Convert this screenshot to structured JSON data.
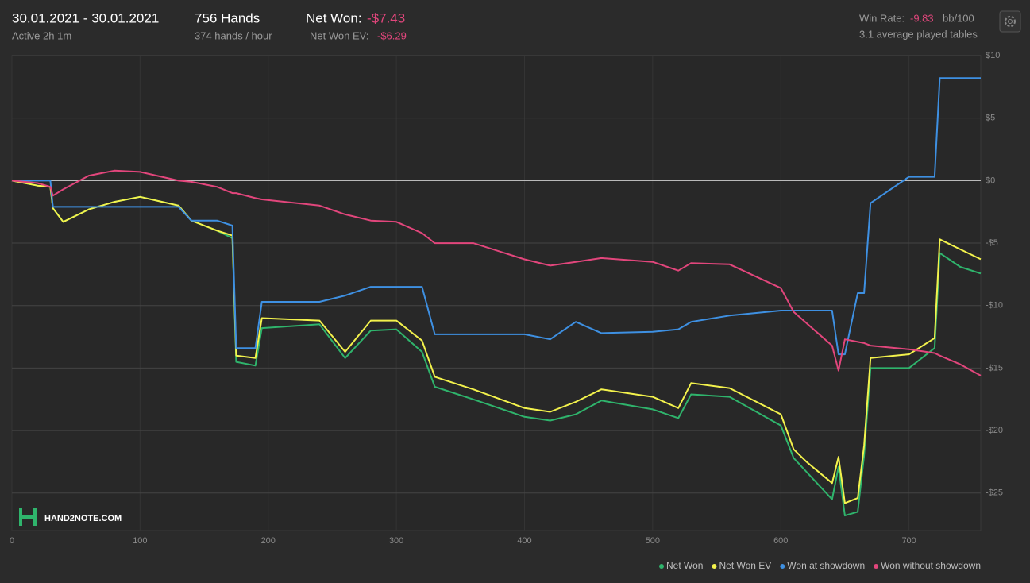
{
  "header": {
    "date_range": "30.01.2021 - 30.01.2021",
    "active": "Active 2h 1m",
    "hands": "756 Hands",
    "hands_per_hour": "374 hands / hour",
    "net_won_label": "Net Won:",
    "net_won_value": "-$7.43",
    "net_won_ev_label": "Net Won  EV:",
    "net_won_ev_value": "-$6.29",
    "win_rate_label": "Win Rate:",
    "win_rate_value": "-9.83",
    "win_rate_unit": "bb/100",
    "tables": "3.1 average played tables"
  },
  "logo": "HAND2NOTE.COM",
  "chart_data": {
    "type": "line",
    "grid": true,
    "legend": "bottom-right",
    "x": [
      0,
      20,
      30,
      32,
      40,
      60,
      80,
      100,
      130,
      140,
      160,
      172,
      175,
      190,
      195,
      240,
      260,
      280,
      300,
      320,
      330,
      360,
      400,
      420,
      440,
      460,
      500,
      520,
      530,
      560,
      600,
      610,
      620,
      640,
      645,
      650,
      660,
      665,
      670,
      700,
      720,
      724,
      740,
      756
    ],
    "series": [
      {
        "name": "Net Won",
        "color": "#2fb46c",
        "values": [
          0,
          -0.4,
          -0.5,
          -2.2,
          -3.3,
          -2.3,
          -1.7,
          -1.3,
          -2.0,
          -3.2,
          -4.0,
          -4.6,
          -14.5,
          -14.8,
          -11.8,
          -11.5,
          -14.2,
          -12.0,
          -11.9,
          -13.7,
          -16.5,
          -17.5,
          -18.9,
          -19.2,
          -18.7,
          -17.6,
          -18.3,
          -19.0,
          -17.1,
          -17.3,
          -19.6,
          -22.2,
          -23.3,
          -25.5,
          -22.9,
          -26.8,
          -26.5,
          -22.0,
          -15.0,
          -15.0,
          -13.4,
          -5.8,
          -6.9,
          -7.43
        ]
      },
      {
        "name": "Net Won  EV",
        "color": "#f3f24c",
        "values": [
          0,
          -0.4,
          -0.5,
          -2.2,
          -3.3,
          -2.3,
          -1.7,
          -1.3,
          -2.0,
          -3.2,
          -4.0,
          -4.4,
          -14.0,
          -14.2,
          -11.0,
          -11.2,
          -13.7,
          -11.2,
          -11.2,
          -12.8,
          -15.7,
          -16.7,
          -18.2,
          -18.5,
          -17.7,
          -16.7,
          -17.3,
          -18.2,
          -16.2,
          -16.6,
          -18.7,
          -21.5,
          -22.5,
          -24.2,
          -22.1,
          -25.8,
          -25.4,
          -21.2,
          -14.2,
          -13.9,
          -12.6,
          -4.7,
          -5.5,
          -6.29
        ]
      },
      {
        "name": "Won at showdown",
        "color": "#3e90e2",
        "values": [
          0,
          0,
          0,
          -2.1,
          -2.1,
          -2.1,
          -2.1,
          -2.1,
          -2.1,
          -3.2,
          -3.2,
          -3.6,
          -13.4,
          -13.4,
          -9.7,
          -9.7,
          -9.2,
          -8.5,
          -8.5,
          -8.5,
          -12.3,
          -12.3,
          -12.3,
          -12.7,
          -11.3,
          -12.2,
          -12.1,
          -11.9,
          -11.3,
          -10.8,
          -10.4,
          -10.4,
          -10.4,
          -10.4,
          -13.9,
          -13.9,
          -9.0,
          -9.0,
          -1.8,
          0.3,
          0.3,
          8.2,
          8.2,
          8.2
        ]
      },
      {
        "name": "Won without showdown",
        "color": "#e2467c",
        "values": [
          0,
          -0.2,
          -0.5,
          -1.2,
          -0.7,
          0.4,
          0.8,
          0.7,
          0.0,
          -0.1,
          -0.5,
          -1.0,
          -1.0,
          -1.4,
          -1.5,
          -2.0,
          -2.7,
          -3.2,
          -3.3,
          -4.2,
          -5.0,
          -5.0,
          -6.3,
          -6.8,
          -6.5,
          -6.2,
          -6.5,
          -7.2,
          -6.6,
          -6.7,
          -8.6,
          -10.5,
          -11.4,
          -13.2,
          -15.2,
          -12.7,
          -12.9,
          -13.0,
          -13.2,
          -13.5,
          -13.8,
          -14.0,
          -14.7,
          -15.6
        ]
      }
    ],
    "xlim": [
      0,
      756
    ],
    "xticks": [
      0,
      100,
      200,
      300,
      400,
      500,
      600,
      700
    ],
    "ylim": [
      -28,
      10
    ],
    "yticks": [
      {
        "value": 10,
        "label": "$10"
      },
      {
        "value": 5,
        "label": "$5"
      },
      {
        "value": 0,
        "label": "$0"
      },
      {
        "value": -5,
        "label": "-$5"
      },
      {
        "value": -10,
        "label": "-$10"
      },
      {
        "value": -15,
        "label": "-$15"
      },
      {
        "value": -20,
        "label": "-$20"
      },
      {
        "value": -25,
        "label": "-$25"
      }
    ]
  }
}
